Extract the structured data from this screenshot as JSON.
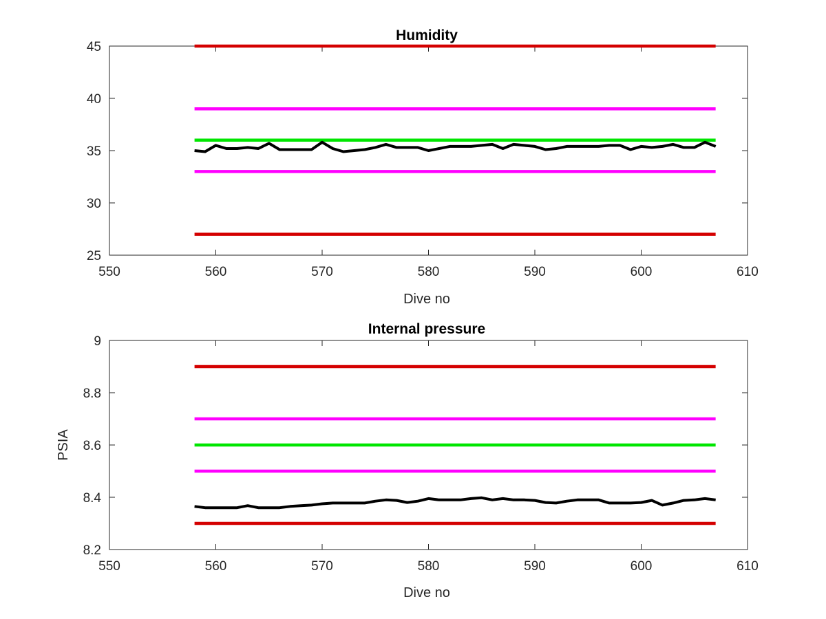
{
  "chart_data": [
    {
      "type": "line",
      "title": "Humidity",
      "xlabel": "Dive no",
      "ylabel": "",
      "xlim": [
        550,
        610
      ],
      "ylim": [
        25,
        45
      ],
      "xticks": [
        550,
        560,
        570,
        580,
        590,
        600,
        610
      ],
      "yticks": [
        25,
        30,
        35,
        40,
        45
      ],
      "grid": false,
      "reference_lines": [
        {
          "value": 45,
          "x_range": [
            558,
            607
          ],
          "color": "#d40000"
        },
        {
          "value": 39,
          "x_range": [
            558,
            607
          ],
          "color": "#ff00ff"
        },
        {
          "value": 36,
          "x_range": [
            558,
            607
          ],
          "color": "#00e600"
        },
        {
          "value": 33,
          "x_range": [
            558,
            607
          ],
          "color": "#ff00ff"
        },
        {
          "value": 27,
          "x_range": [
            558,
            607
          ],
          "color": "#d40000"
        }
      ],
      "series": [
        {
          "color": "#000000",
          "x": [
            558,
            559,
            560,
            561,
            562,
            563,
            564,
            565,
            566,
            567,
            568,
            569,
            570,
            571,
            572,
            573,
            574,
            575,
            576,
            577,
            578,
            579,
            580,
            581,
            582,
            583,
            584,
            585,
            586,
            587,
            588,
            589,
            590,
            591,
            592,
            593,
            594,
            595,
            596,
            597,
            598,
            599,
            600,
            601,
            602,
            603,
            604,
            605,
            606,
            607
          ],
          "y": [
            35.0,
            34.9,
            35.5,
            35.2,
            35.2,
            35.3,
            35.2,
            35.7,
            35.1,
            35.1,
            35.1,
            35.1,
            35.8,
            35.2,
            34.9,
            35.0,
            35.1,
            35.3,
            35.6,
            35.3,
            35.3,
            35.3,
            35.0,
            35.2,
            35.4,
            35.4,
            35.4,
            35.5,
            35.6,
            35.2,
            35.6,
            35.5,
            35.4,
            35.1,
            35.2,
            35.4,
            35.4,
            35.4,
            35.4,
            35.5,
            35.5,
            35.1,
            35.4,
            35.3,
            35.4,
            35.6,
            35.3,
            35.3,
            35.8,
            35.4
          ]
        }
      ]
    },
    {
      "type": "line",
      "title": "Internal pressure",
      "xlabel": "Dive no",
      "ylabel": "PSIA",
      "xlim": [
        550,
        610
      ],
      "ylim": [
        8.2,
        9.0
      ],
      "xticks": [
        550,
        560,
        570,
        580,
        590,
        600,
        610
      ],
      "yticks": [
        8.2,
        8.4,
        8.6,
        8.8,
        9
      ],
      "ytick_labels": [
        "8.2",
        "8.4",
        "8.6",
        "8.8",
        "9"
      ],
      "grid": false,
      "reference_lines": [
        {
          "value": 8.9,
          "x_range": [
            558,
            607
          ],
          "color": "#d40000"
        },
        {
          "value": 8.7,
          "x_range": [
            558,
            607
          ],
          "color": "#ff00ff"
        },
        {
          "value": 8.6,
          "x_range": [
            558,
            607
          ],
          "color": "#00e600"
        },
        {
          "value": 8.5,
          "x_range": [
            558,
            607
          ],
          "color": "#ff00ff"
        },
        {
          "value": 8.3,
          "x_range": [
            558,
            607
          ],
          "color": "#d40000"
        }
      ],
      "series": [
        {
          "color": "#000000",
          "x": [
            558,
            559,
            560,
            561,
            562,
            563,
            564,
            565,
            566,
            567,
            568,
            569,
            570,
            571,
            572,
            573,
            574,
            575,
            576,
            577,
            578,
            579,
            580,
            581,
            582,
            583,
            584,
            585,
            586,
            587,
            588,
            589,
            590,
            591,
            592,
            593,
            594,
            595,
            596,
            597,
            598,
            599,
            600,
            601,
            602,
            603,
            604,
            605,
            606,
            607
          ],
          "y": [
            8.365,
            8.36,
            8.36,
            8.36,
            8.36,
            8.368,
            8.36,
            8.36,
            8.36,
            8.365,
            8.368,
            8.37,
            8.375,
            8.378,
            8.378,
            8.378,
            8.378,
            8.385,
            8.39,
            8.388,
            8.38,
            8.385,
            8.395,
            8.39,
            8.39,
            8.39,
            8.395,
            8.398,
            8.39,
            8.395,
            8.39,
            8.39,
            8.388,
            8.38,
            8.378,
            8.385,
            8.39,
            8.39,
            8.39,
            8.378,
            8.378,
            8.378,
            8.38,
            8.388,
            8.37,
            8.378,
            8.388,
            8.39,
            8.395,
            8.39
          ]
        }
      ]
    }
  ]
}
